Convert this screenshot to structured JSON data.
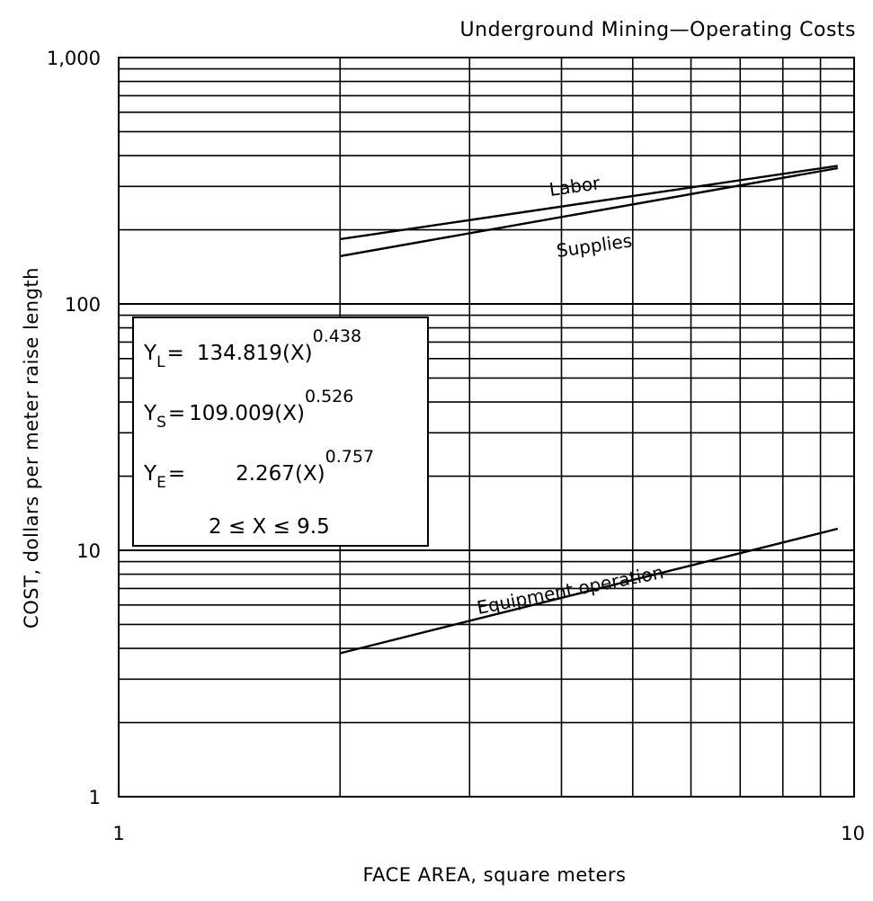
{
  "chart_data": {
    "type": "line",
    "title": "Underground Mining—Operating Costs",
    "xlabel": "FACE AREA, square meters",
    "ylabel": "COST, dollars per meter raise length",
    "x_scale": "log",
    "y_scale": "log",
    "xlim": [
      1,
      10
    ],
    "ylim": [
      1,
      1000
    ],
    "x_ticks": [
      {
        "value": 1,
        "label": "1"
      },
      {
        "value": 10,
        "label": "10"
      }
    ],
    "y_ticks": [
      {
        "value": 1,
        "label": "1"
      },
      {
        "value": 10,
        "label": "10"
      },
      {
        "value": 100,
        "label": "100"
      },
      {
        "value": 1000,
        "label": "1,000"
      }
    ],
    "grid": true,
    "series": [
      {
        "name": "Labor",
        "x": [
          2,
          9.5
        ],
        "y": [
          183.1,
          363.7
        ]
      },
      {
        "name": "Supplies",
        "x": [
          2,
          9.5
        ],
        "y": [
          156.3,
          355.6
        ]
      },
      {
        "name": "Equipment operation",
        "x": [
          2,
          9.5
        ],
        "y": [
          3.82,
          12.23
        ]
      }
    ],
    "equations": [
      {
        "lhs": "Y",
        "sub": "L",
        "eq": "=",
        "coef": "134.819(X)",
        "exp": "0.438"
      },
      {
        "lhs": "Y",
        "sub": "S",
        "eq": "=",
        "coef": "109.009(X)",
        "exp": "0.526"
      },
      {
        "lhs": "Y",
        "sub": "E",
        "eq": "=",
        "coef": "2.267(X)",
        "exp": "0.757"
      }
    ],
    "range_note": "2 ≤ X ≤ 9.5"
  }
}
